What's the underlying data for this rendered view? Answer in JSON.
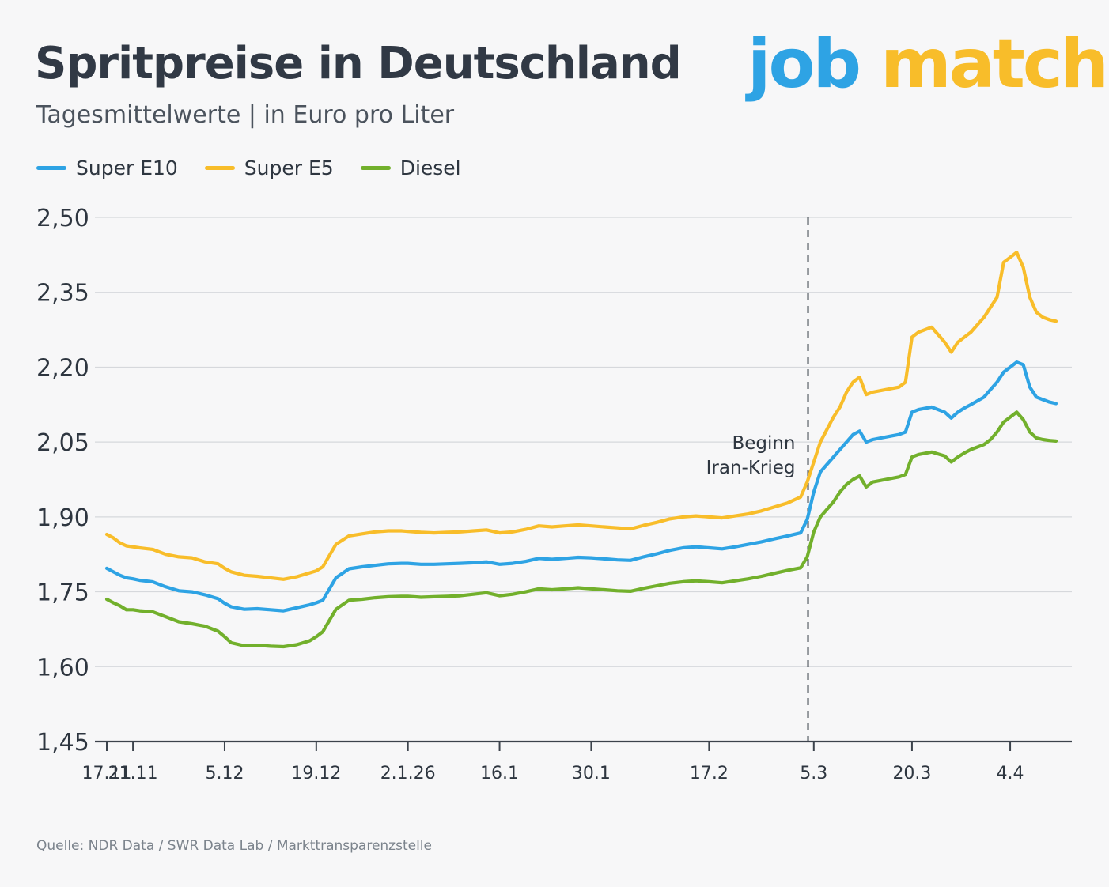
{
  "title": "Spritpreise in Deutschland",
  "subtitle": "Tagesmittelwerte | in Euro pro Liter",
  "logo": {
    "part1": "job",
    "part2": "match"
  },
  "source": "Quelle: NDR Data / SWR Data Lab / Markttransparenzstelle",
  "colors": {
    "Super E10": "#2ea3e4",
    "Super E5": "#f8bd2a",
    "Diesel": "#72b02c"
  },
  "chart_data": {
    "type": "line",
    "title": "Spritpreise in Deutschland",
    "subtitle": "Tagesmittelwerte | in Euro pro Liter",
    "ylim": [
      1.45,
      2.5
    ],
    "yticks": [
      "1,45",
      "1,60",
      "1,75",
      "1,90",
      "2,05",
      "2,20",
      "2,35",
      "2,50"
    ],
    "ytick_values": [
      1.45,
      1.6,
      1.75,
      1.9,
      2.05,
      2.2,
      2.35,
      2.5
    ],
    "x_ticks": [
      {
        "label": "17.11",
        "date": "2025-11-17"
      },
      {
        "label": "21.11",
        "date": "2025-11-21"
      },
      {
        "label": "5.12",
        "date": "2025-12-05"
      },
      {
        "label": "19.12",
        "date": "2025-12-19"
      },
      {
        "label": "2.1.26",
        "date": "2026-01-02"
      },
      {
        "label": "16.1",
        "date": "2026-01-16"
      },
      {
        "label": "30.1",
        "date": "2026-01-30"
      },
      {
        "label": "17.2",
        "date": "2026-02-17"
      },
      {
        "label": "5.3",
        "date": "2026-03-05"
      },
      {
        "label": "20.3",
        "date": "2026-03-20"
      },
      {
        "label": "4.4",
        "date": "2026-04-04"
      }
    ],
    "x": [
      "2025-11-17",
      "2025-11-18",
      "2025-11-19",
      "2025-11-20",
      "2025-11-21",
      "2025-11-22",
      "2025-11-24",
      "2025-11-26",
      "2025-11-28",
      "2025-11-30",
      "2025-12-02",
      "2025-12-04",
      "2025-12-05",
      "2025-12-06",
      "2025-12-08",
      "2025-12-10",
      "2025-12-12",
      "2025-12-14",
      "2025-12-16",
      "2025-12-18",
      "2025-12-19",
      "2025-12-20",
      "2025-12-22",
      "2025-12-24",
      "2025-12-26",
      "2025-12-28",
      "2025-12-30",
      "2026-01-01",
      "2026-01-02",
      "2026-01-04",
      "2026-01-06",
      "2026-01-08",
      "2026-01-10",
      "2026-01-12",
      "2026-01-14",
      "2026-01-16",
      "2026-01-18",
      "2026-01-20",
      "2026-01-22",
      "2026-01-24",
      "2026-01-26",
      "2026-01-28",
      "2026-01-30",
      "2026-02-01",
      "2026-02-03",
      "2026-02-05",
      "2026-02-07",
      "2026-02-09",
      "2026-02-11",
      "2026-02-13",
      "2026-02-15",
      "2026-02-17",
      "2026-02-19",
      "2026-02-21",
      "2026-02-23",
      "2026-02-25",
      "2026-02-27",
      "2026-03-01",
      "2026-03-03",
      "2026-03-04",
      "2026-03-05",
      "2026-03-06",
      "2026-03-08",
      "2026-03-09",
      "2026-03-10",
      "2026-03-11",
      "2026-03-12",
      "2026-03-13",
      "2026-03-14",
      "2026-03-16",
      "2026-03-18",
      "2026-03-19",
      "2026-03-20",
      "2026-03-21",
      "2026-03-23",
      "2026-03-25",
      "2026-03-26",
      "2026-03-27",
      "2026-03-28",
      "2026-03-29",
      "2026-03-31",
      "2026-04-01",
      "2026-04-02",
      "2026-04-03",
      "2026-04-04",
      "2026-04-05",
      "2026-04-06",
      "2026-04-07",
      "2026-04-08",
      "2026-04-09",
      "2026-04-10",
      "2026-04-11"
    ],
    "series": [
      {
        "name": "Super E5",
        "values": [
          1.865,
          1.858,
          1.848,
          1.842,
          1.84,
          1.838,
          1.835,
          1.825,
          1.82,
          1.818,
          1.81,
          1.806,
          1.797,
          1.79,
          1.783,
          1.781,
          1.778,
          1.775,
          1.78,
          1.788,
          1.792,
          1.8,
          1.845,
          1.862,
          1.866,
          1.87,
          1.872,
          1.872,
          1.871,
          1.869,
          1.868,
          1.869,
          1.87,
          1.872,
          1.874,
          1.868,
          1.87,
          1.875,
          1.882,
          1.88,
          1.882,
          1.884,
          1.882,
          1.88,
          1.878,
          1.876,
          1.883,
          1.889,
          1.896,
          1.9,
          1.902,
          1.9,
          1.898,
          1.902,
          1.906,
          1.912,
          1.92,
          1.928,
          1.94,
          1.97,
          2.01,
          2.05,
          2.1,
          2.12,
          2.15,
          2.17,
          2.18,
          2.145,
          2.15,
          2.155,
          2.16,
          2.17,
          2.26,
          2.27,
          2.28,
          2.25,
          2.23,
          2.25,
          2.26,
          2.27,
          2.3,
          2.32,
          2.34,
          2.41,
          2.42,
          2.43,
          2.4,
          2.34,
          2.31,
          2.3,
          2.295,
          2.292
        ]
      },
      {
        "name": "Super E10",
        "values": [
          1.797,
          1.79,
          1.783,
          1.778,
          1.776,
          1.773,
          1.77,
          1.76,
          1.752,
          1.75,
          1.744,
          1.736,
          1.727,
          1.72,
          1.715,
          1.716,
          1.714,
          1.712,
          1.718,
          1.724,
          1.728,
          1.733,
          1.778,
          1.796,
          1.8,
          1.803,
          1.806,
          1.807,
          1.807,
          1.805,
          1.805,
          1.806,
          1.807,
          1.808,
          1.81,
          1.805,
          1.807,
          1.811,
          1.817,
          1.815,
          1.817,
          1.819,
          1.818,
          1.816,
          1.814,
          1.813,
          1.82,
          1.826,
          1.833,
          1.838,
          1.84,
          1.838,
          1.836,
          1.84,
          1.845,
          1.85,
          1.856,
          1.862,
          1.868,
          1.895,
          1.95,
          1.99,
          2.02,
          2.035,
          2.05,
          2.065,
          2.072,
          2.05,
          2.055,
          2.06,
          2.065,
          2.07,
          2.11,
          2.115,
          2.12,
          2.11,
          2.098,
          2.11,
          2.118,
          2.125,
          2.14,
          2.155,
          2.17,
          2.19,
          2.2,
          2.21,
          2.205,
          2.16,
          2.14,
          2.135,
          2.13,
          2.127
        ]
      },
      {
        "name": "Diesel",
        "values": [
          1.735,
          1.728,
          1.722,
          1.714,
          1.714,
          1.712,
          1.71,
          1.7,
          1.69,
          1.686,
          1.681,
          1.671,
          1.66,
          1.648,
          1.642,
          1.643,
          1.641,
          1.64,
          1.644,
          1.652,
          1.66,
          1.67,
          1.715,
          1.733,
          1.735,
          1.738,
          1.74,
          1.741,
          1.741,
          1.739,
          1.74,
          1.741,
          1.742,
          1.745,
          1.748,
          1.742,
          1.745,
          1.75,
          1.756,
          1.754,
          1.756,
          1.758,
          1.756,
          1.754,
          1.752,
          1.751,
          1.757,
          1.762,
          1.767,
          1.77,
          1.772,
          1.77,
          1.768,
          1.772,
          1.776,
          1.781,
          1.787,
          1.793,
          1.798,
          1.82,
          1.87,
          1.9,
          1.93,
          1.95,
          1.965,
          1.975,
          1.982,
          1.96,
          1.97,
          1.975,
          1.98,
          1.985,
          2.02,
          2.025,
          2.03,
          2.022,
          2.01,
          2.02,
          2.028,
          2.035,
          2.045,
          2.055,
          2.07,
          2.09,
          2.1,
          2.11,
          2.095,
          2.07,
          2.058,
          2.055,
          2.053,
          2.052
        ]
      }
    ],
    "annotation": {
      "line1": "Beginn",
      "line2": "Iran-Krieg",
      "date": "2026-03-04"
    },
    "grid": true,
    "legend_placement": "top-left"
  }
}
